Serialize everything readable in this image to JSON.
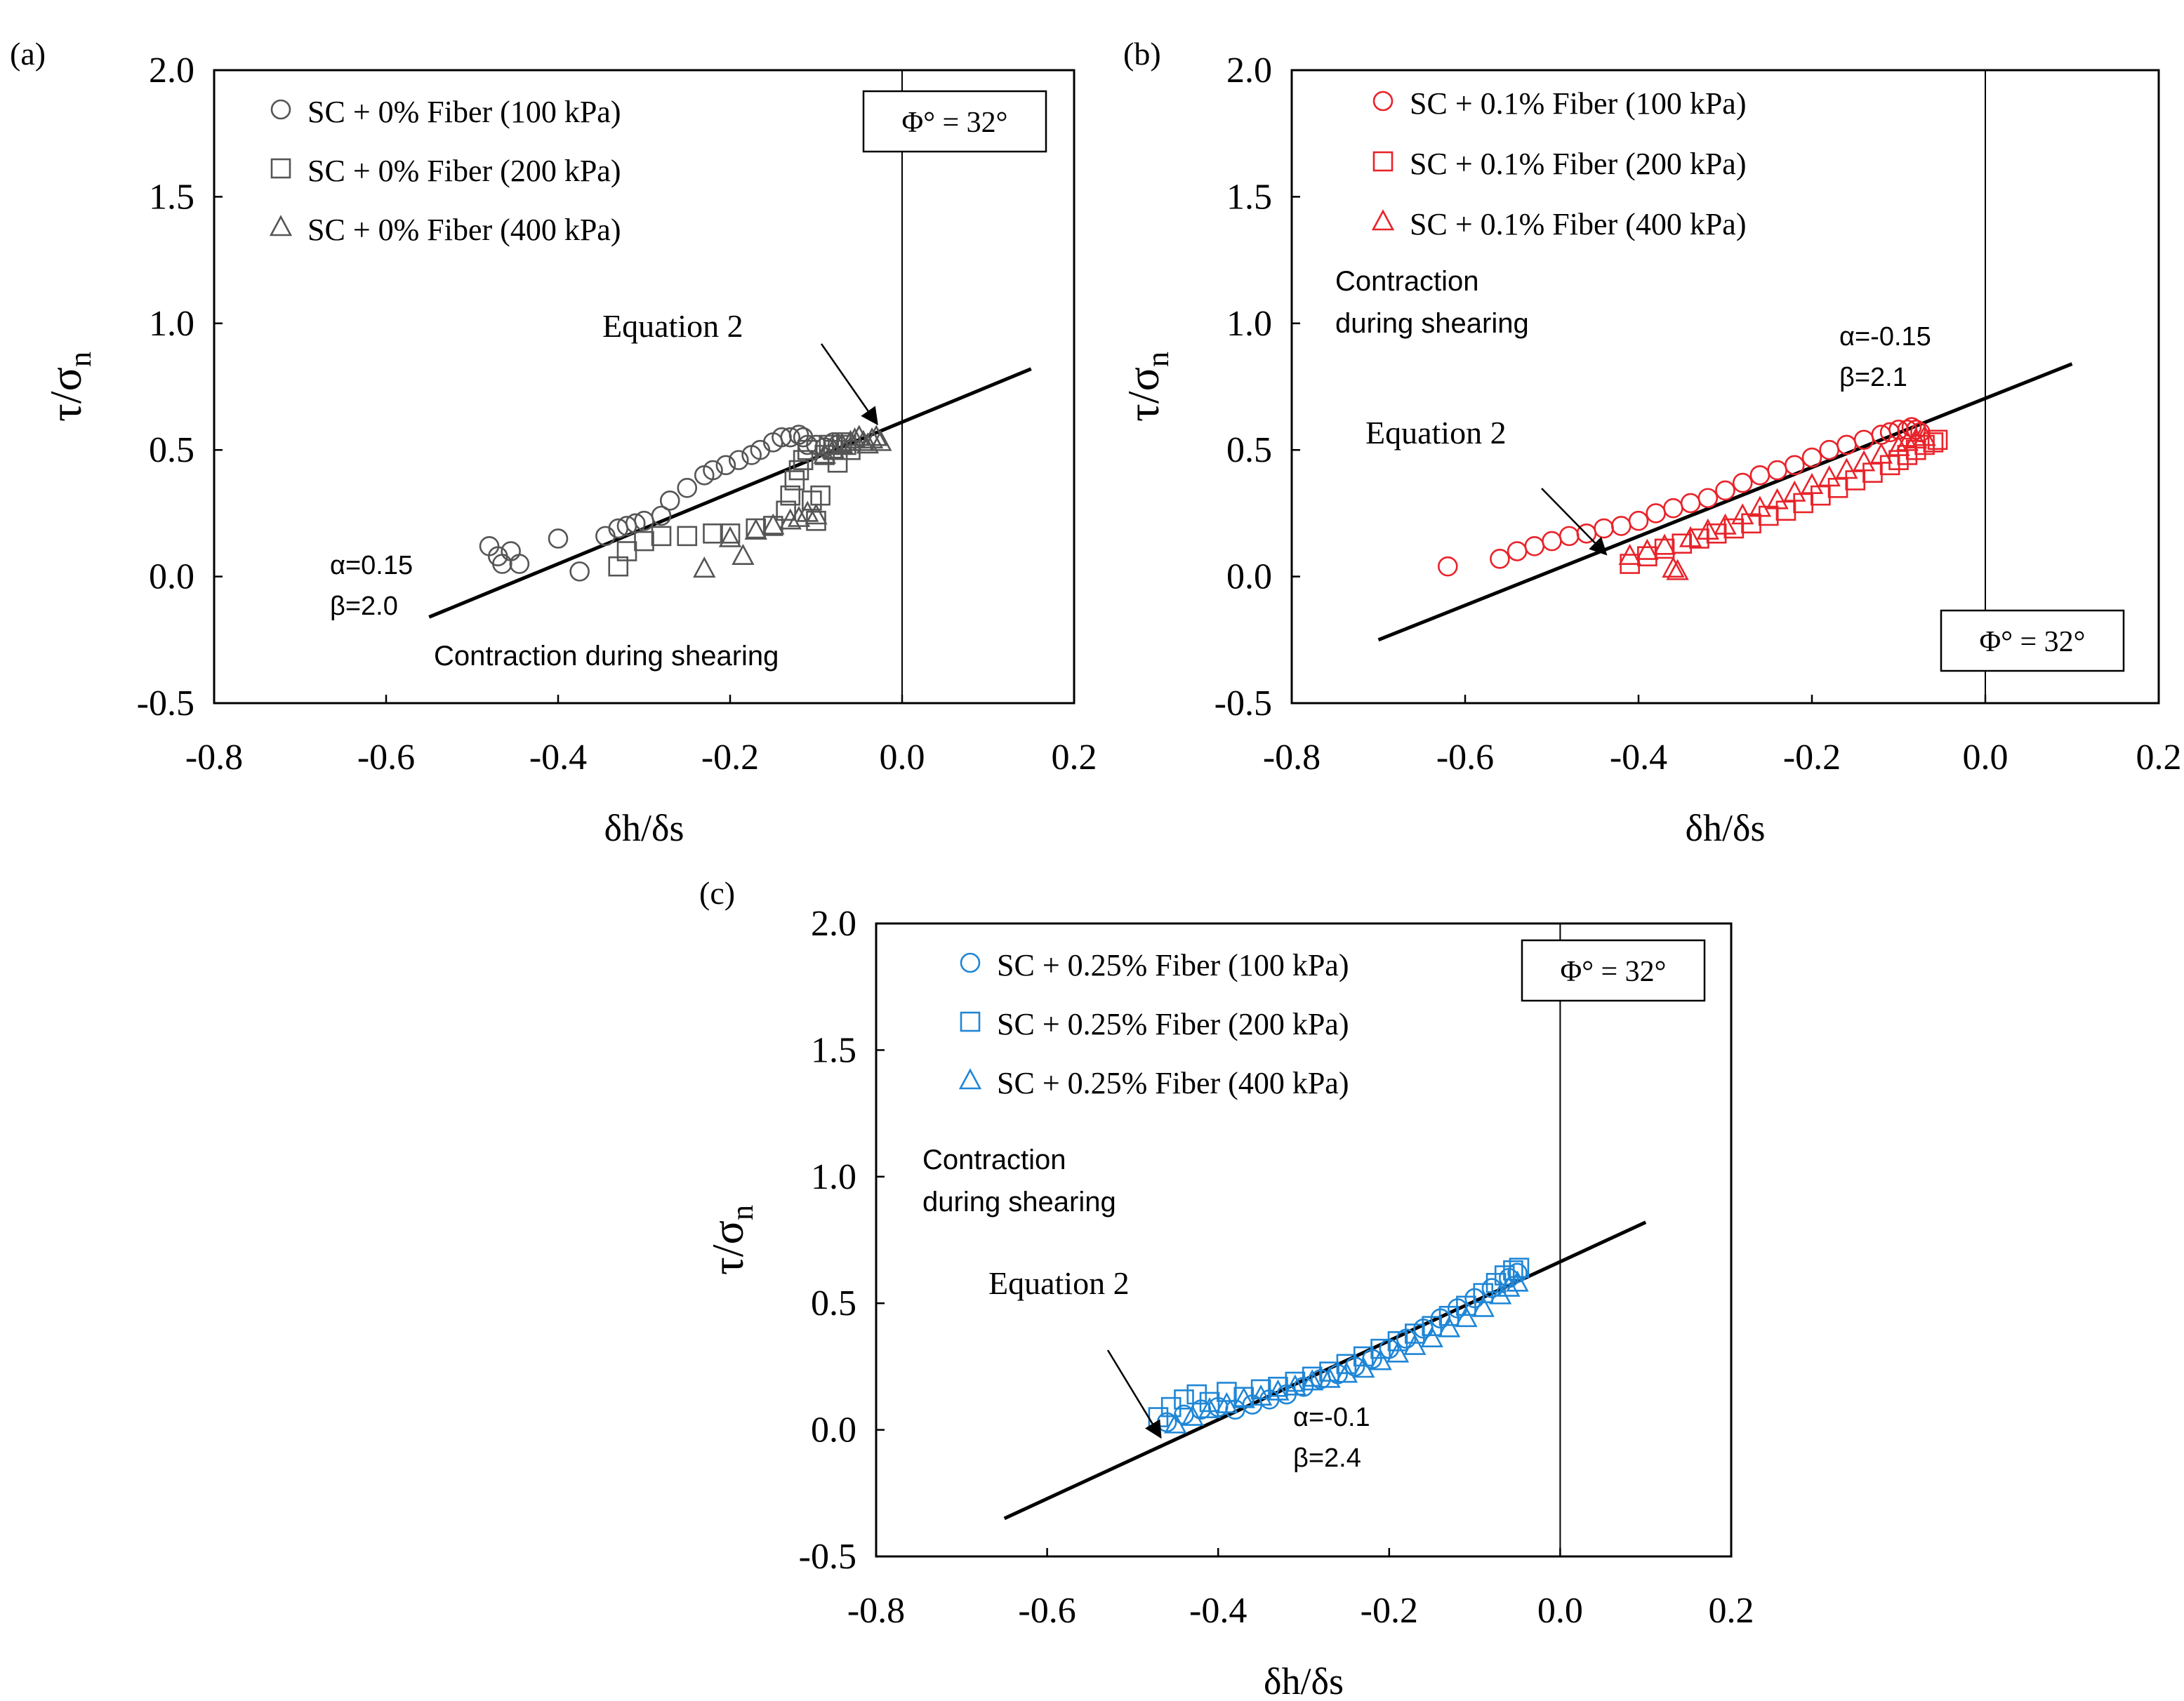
{
  "figure": {
    "type": "composite scatter with fitted line (three panels)",
    "colors": {
      "panel_a": "#555555",
      "panel_b": "#e8232a",
      "panel_c": "#1f86d6",
      "line": "#000000"
    }
  },
  "chart_data": [
    {
      "panel": "(a)",
      "type": "scatter",
      "xlabel": "δh/δs",
      "ylabel": "τ/σ",
      "ylabel_sub": "n",
      "xlim": [
        -0.8,
        0.2
      ],
      "ylim": [
        -0.5,
        2.0
      ],
      "xticks": [
        "-0.8",
        "-0.6",
        "-0.4",
        "-0.2",
        "0.0",
        "0.2"
      ],
      "yticks": [
        "-0.5",
        "0.0",
        "0.5",
        "1.0",
        "1.5",
        "2.0"
      ],
      "phi_box": "Φ° = 32°",
      "equation_label": "Equation 2",
      "alpha_label": "α=0.15",
      "beta_label": "β=2.0",
      "contraction_label": "Contraction during shearing",
      "fit_line": {
        "x": [
          -0.55,
          0.15
        ],
        "y": [
          -0.16,
          0.82
        ]
      },
      "series": [
        {
          "name": "SC + 0% Fiber (100 kPa)",
          "marker": "circle",
          "x": [
            -0.48,
            -0.47,
            -0.465,
            -0.455,
            -0.445,
            -0.4,
            -0.375,
            -0.345,
            -0.33,
            -0.32,
            -0.31,
            -0.3,
            -0.28,
            -0.27,
            -0.25,
            -0.23,
            -0.22,
            -0.205,
            -0.19,
            -0.175,
            -0.165,
            -0.15,
            -0.14,
            -0.13,
            -0.12,
            -0.115,
            -0.11,
            -0.1,
            -0.09,
            -0.08,
            -0.075
          ],
          "y": [
            0.12,
            0.08,
            0.05,
            0.1,
            0.05,
            0.15,
            0.02,
            0.16,
            0.19,
            0.2,
            0.21,
            0.22,
            0.24,
            0.3,
            0.35,
            0.4,
            0.42,
            0.44,
            0.46,
            0.48,
            0.5,
            0.53,
            0.55,
            0.55,
            0.56,
            0.55,
            0.52,
            0.52,
            0.51,
            0.53,
            0.52
          ]
        },
        {
          "name": "SC + 0% Fiber (200 kPa)",
          "marker": "square",
          "x": [
            -0.33,
            -0.32,
            -0.3,
            -0.28,
            -0.25,
            -0.22,
            -0.2,
            -0.17,
            -0.15,
            -0.135,
            -0.13,
            -0.125,
            -0.12,
            -0.115,
            -0.11,
            -0.105,
            -0.1,
            -0.095,
            -0.09,
            -0.085,
            -0.08,
            -0.075,
            -0.07,
            -0.065,
            -0.06
          ],
          "y": [
            0.04,
            0.1,
            0.14,
            0.16,
            0.16,
            0.17,
            0.17,
            0.19,
            0.2,
            0.26,
            0.32,
            0.38,
            0.42,
            0.46,
            0.5,
            0.3,
            0.22,
            0.32,
            0.48,
            0.52,
            0.5,
            0.45,
            0.53,
            0.52,
            0.5
          ]
        },
        {
          "name": "SC + 0% Fiber (400 kPa)",
          "marker": "triangle",
          "x": [
            -0.23,
            -0.2,
            -0.185,
            -0.17,
            -0.15,
            -0.13,
            -0.12,
            -0.11,
            -0.1,
            -0.09,
            -0.08,
            -0.07,
            -0.06,
            -0.055,
            -0.05,
            -0.045,
            -0.04,
            -0.035,
            -0.03,
            -0.025
          ],
          "y": [
            0.03,
            0.15,
            0.08,
            0.18,
            0.2,
            0.22,
            0.23,
            0.25,
            0.24,
            0.48,
            0.5,
            0.52,
            0.53,
            0.54,
            0.55,
            0.53,
            0.52,
            0.54,
            0.55,
            0.53
          ]
        }
      ]
    },
    {
      "panel": "(b)",
      "type": "scatter",
      "xlabel": "δh/δs",
      "ylabel": "τ/σ",
      "ylabel_sub": "n",
      "xlim": [
        -0.8,
        0.2
      ],
      "ylim": [
        -0.5,
        2.0
      ],
      "xticks": [
        "-0.8",
        "-0.6",
        "-0.4",
        "-0.2",
        "0.0",
        "0.2"
      ],
      "yticks": [
        "-0.5",
        "0.0",
        "0.5",
        "1.0",
        "1.5",
        "2.0"
      ],
      "phi_box": "Φ° = 32°",
      "equation_label": "Equation 2",
      "alpha_label": "α=-0.15",
      "beta_label": "β=2.1",
      "contraction_label": [
        "Contraction",
        "during shearing"
      ],
      "fit_line": {
        "x": [
          -0.7,
          0.1
        ],
        "y": [
          -0.25,
          0.84
        ]
      },
      "series": [
        {
          "name": "SC + 0.1% Fiber (100 kPa)",
          "marker": "circle",
          "x": [
            -0.62,
            -0.56,
            -0.54,
            -0.52,
            -0.5,
            -0.48,
            -0.46,
            -0.44,
            -0.42,
            -0.4,
            -0.38,
            -0.36,
            -0.34,
            -0.32,
            -0.3,
            -0.28,
            -0.26,
            -0.24,
            -0.22,
            -0.2,
            -0.18,
            -0.16,
            -0.14,
            -0.12,
            -0.11,
            -0.1,
            -0.09,
            -0.085,
            -0.08,
            -0.075
          ],
          "y": [
            0.04,
            0.07,
            0.1,
            0.12,
            0.14,
            0.16,
            0.17,
            0.19,
            0.2,
            0.22,
            0.25,
            0.27,
            0.29,
            0.31,
            0.34,
            0.37,
            0.4,
            0.42,
            0.44,
            0.47,
            0.5,
            0.52,
            0.54,
            0.56,
            0.57,
            0.58,
            0.58,
            0.59,
            0.58,
            0.57
          ]
        },
        {
          "name": "SC + 0.1% Fiber (200 kPa)",
          "marker": "square",
          "x": [
            -0.41,
            -0.39,
            -0.37,
            -0.35,
            -0.33,
            -0.31,
            -0.29,
            -0.27,
            -0.25,
            -0.23,
            -0.21,
            -0.19,
            -0.17,
            -0.15,
            -0.13,
            -0.11,
            -0.1,
            -0.09,
            -0.08,
            -0.07,
            -0.06,
            -0.055
          ],
          "y": [
            0.05,
            0.08,
            0.11,
            0.13,
            0.15,
            0.17,
            0.19,
            0.21,
            0.24,
            0.26,
            0.29,
            0.32,
            0.35,
            0.38,
            0.41,
            0.44,
            0.46,
            0.48,
            0.5,
            0.52,
            0.53,
            0.54
          ]
        },
        {
          "name": "SC + 0.1% Fiber (400 kPa)",
          "marker": "triangle",
          "x": [
            -0.41,
            -0.39,
            -0.37,
            -0.36,
            -0.355,
            -0.34,
            -0.32,
            -0.3,
            -0.28,
            -0.26,
            -0.24,
            -0.22,
            -0.2,
            -0.18,
            -0.16,
            -0.14,
            -0.12,
            -0.1,
            -0.09,
            -0.08,
            -0.07
          ],
          "y": [
            0.08,
            0.1,
            0.12,
            0.03,
            0.02,
            0.15,
            0.18,
            0.2,
            0.24,
            0.27,
            0.3,
            0.33,
            0.36,
            0.39,
            0.42,
            0.45,
            0.48,
            0.51,
            0.53,
            0.54,
            0.55
          ]
        }
      ]
    },
    {
      "panel": "(c)",
      "type": "scatter",
      "xlabel": "δh/δs",
      "ylabel": "τ/σ",
      "ylabel_sub": "n",
      "xlim": [
        -0.8,
        0.2
      ],
      "ylim": [
        -0.5,
        2.0
      ],
      "xticks": [
        "-0.8",
        "-0.6",
        "-0.4",
        "-0.2",
        "0.0",
        "0.2"
      ],
      "yticks": [
        "-0.5",
        "0.0",
        "0.5",
        "1.0",
        "1.5",
        "2.0"
      ],
      "phi_box": "Φ° = 32°",
      "equation_label": "Equation 2",
      "alpha_label": "α=-0.1",
      "beta_label": "β=2.4",
      "contraction_label": [
        "Contraction",
        "during shearing"
      ],
      "fit_line": {
        "x": [
          -0.65,
          0.1
        ],
        "y": [
          -0.35,
          0.82
        ]
      },
      "series": [
        {
          "name": "SC + 0.25% Fiber (100 kPa)",
          "marker": "circle",
          "x": [
            -0.46,
            -0.44,
            -0.42,
            -0.4,
            -0.38,
            -0.36,
            -0.34,
            -0.32,
            -0.3,
            -0.28,
            -0.26,
            -0.24,
            -0.22,
            -0.2,
            -0.18,
            -0.16,
            -0.14,
            -0.12,
            -0.1,
            -0.08,
            -0.06,
            -0.05
          ],
          "y": [
            0.03,
            0.06,
            0.08,
            0.09,
            0.08,
            0.1,
            0.12,
            0.14,
            0.17,
            0.2,
            0.22,
            0.25,
            0.28,
            0.32,
            0.36,
            0.4,
            0.44,
            0.48,
            0.52,
            0.56,
            0.6,
            0.62
          ]
        },
        {
          "name": "SC + 0.25% Fiber (200 kPa)",
          "marker": "square",
          "x": [
            -0.47,
            -0.455,
            -0.44,
            -0.425,
            -0.41,
            -0.39,
            -0.37,
            -0.35,
            -0.33,
            -0.31,
            -0.29,
            -0.27,
            -0.25,
            -0.23,
            -0.21,
            -0.19,
            -0.17,
            -0.15,
            -0.13,
            -0.11,
            -0.09,
            -0.075,
            -0.065,
            -0.055,
            -0.048
          ],
          "y": [
            0.05,
            0.09,
            0.12,
            0.14,
            0.11,
            0.15,
            0.13,
            0.16,
            0.17,
            0.19,
            0.21,
            0.23,
            0.26,
            0.29,
            0.32,
            0.35,
            0.38,
            0.41,
            0.45,
            0.49,
            0.54,
            0.58,
            0.61,
            0.63,
            0.64
          ]
        },
        {
          "name": "SC + 0.25% Fiber (400 kPa)",
          "marker": "triangle",
          "x": [
            -0.45,
            -0.43,
            -0.41,
            -0.39,
            -0.37,
            -0.35,
            -0.33,
            -0.31,
            -0.29,
            -0.27,
            -0.25,
            -0.23,
            -0.21,
            -0.19,
            -0.17,
            -0.15,
            -0.13,
            -0.11,
            -0.09,
            -0.07,
            -0.06,
            -0.05
          ],
          "y": [
            0.02,
            0.05,
            0.08,
            0.1,
            0.12,
            0.13,
            0.15,
            0.17,
            0.19,
            0.2,
            0.22,
            0.24,
            0.27,
            0.3,
            0.33,
            0.36,
            0.4,
            0.44,
            0.48,
            0.53,
            0.56,
            0.58
          ]
        }
      ]
    }
  ]
}
